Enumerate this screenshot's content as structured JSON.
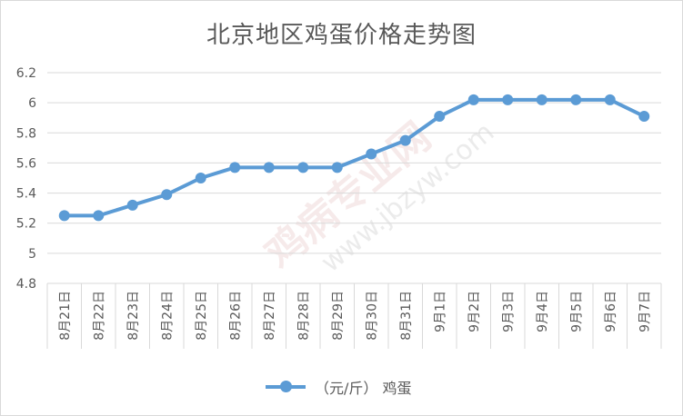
{
  "chart_data": {
    "type": "line",
    "title": "北京地区鸡蛋价格走势图",
    "categories": [
      "8月21日",
      "8月22日",
      "8月23日",
      "8月24日",
      "8月25日",
      "8月26日",
      "8月27日",
      "8月28日",
      "8月29日",
      "8月30日",
      "8月31日",
      "9月1日",
      "9月2日",
      "9月3日",
      "9月4日",
      "9月5日",
      "9月6日",
      "9月7日"
    ],
    "series": [
      {
        "name": "（元/斤） 鸡蛋",
        "values": [
          5.25,
          5.25,
          5.32,
          5.39,
          5.5,
          5.57,
          5.57,
          5.57,
          5.57,
          5.66,
          5.75,
          5.91,
          6.02,
          6.02,
          6.02,
          6.02,
          6.02,
          5.91
        ]
      }
    ],
    "ylim": [
      4.8,
      6.2
    ],
    "yticks": [
      "4.8",
      "5",
      "5.2",
      "5.4",
      "5.6",
      "5.8",
      "6",
      "6.2"
    ],
    "grid": true,
    "legend_position": "bottom",
    "colors": {
      "series": "#5b9bd5",
      "grid": "#d9d9d9",
      "text": "#595959"
    }
  },
  "watermark": {
    "text": "鸡病专业网",
    "url": "www.jbzyw.com"
  }
}
